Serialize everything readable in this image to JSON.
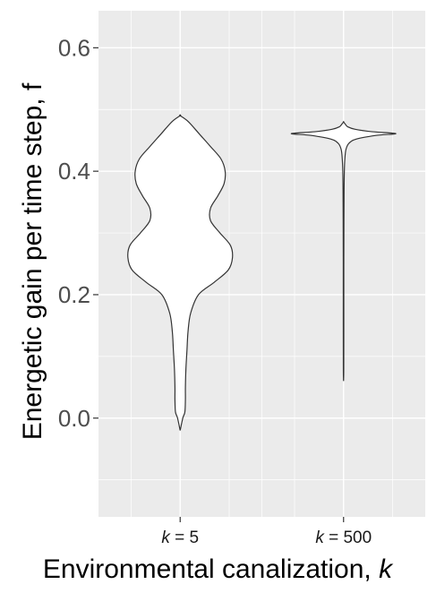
{
  "chart_data": {
    "type": "violin",
    "xlabel": "Environmental canalization, k",
    "xlabel_text": "Environmental canalization, ",
    "xlabel_var": "k",
    "ylabel": "Energetic gain per time step, f",
    "ylim": [
      -0.16,
      0.66
    ],
    "yticks": [
      0.0,
      0.2,
      0.4,
      0.6
    ],
    "ytick_labels": [
      "0.0",
      "0.2",
      "0.4",
      "0.6"
    ],
    "grid": true,
    "background": "#ebebeb",
    "gridline_color": "#ffffff",
    "violin_fill": "#ffffff",
    "violin_stroke": "#333333",
    "categories": [
      {
        "var": "k",
        "eq": " = 5",
        "label": "k = 5"
      },
      {
        "var": "k",
        "eq": " = 500",
        "label": "k = 500"
      }
    ],
    "series": [
      {
        "category": "k = 5",
        "min": -0.02,
        "max": 0.49,
        "density": [
          [
            -0.02,
            0.0
          ],
          [
            0.0,
            0.05
          ],
          [
            0.01,
            0.09
          ],
          [
            0.03,
            0.1
          ],
          [
            0.05,
            0.1
          ],
          [
            0.08,
            0.11
          ],
          [
            0.11,
            0.13
          ],
          [
            0.14,
            0.15
          ],
          [
            0.17,
            0.2
          ],
          [
            0.2,
            0.35
          ],
          [
            0.22,
            0.65
          ],
          [
            0.24,
            0.92
          ],
          [
            0.26,
            1.0
          ],
          [
            0.28,
            0.96
          ],
          [
            0.3,
            0.76
          ],
          [
            0.32,
            0.58
          ],
          [
            0.34,
            0.58
          ],
          [
            0.36,
            0.72
          ],
          [
            0.38,
            0.84
          ],
          [
            0.4,
            0.86
          ],
          [
            0.42,
            0.78
          ],
          [
            0.44,
            0.58
          ],
          [
            0.46,
            0.37
          ],
          [
            0.48,
            0.16
          ],
          [
            0.49,
            0.0
          ]
        ]
      },
      {
        "category": "k = 500",
        "min": 0.06,
        "max": 0.48,
        "density": [
          [
            0.06,
            0.0
          ],
          [
            0.08,
            0.004
          ],
          [
            0.15,
            0.005
          ],
          [
            0.25,
            0.005
          ],
          [
            0.32,
            0.007
          ],
          [
            0.37,
            0.01
          ],
          [
            0.4,
            0.015
          ],
          [
            0.42,
            0.025
          ],
          [
            0.435,
            0.045
          ],
          [
            0.445,
            0.1
          ],
          [
            0.452,
            0.24
          ],
          [
            0.458,
            0.62
          ],
          [
            0.461,
            1.0
          ],
          [
            0.464,
            0.55
          ],
          [
            0.468,
            0.22
          ],
          [
            0.472,
            0.08
          ],
          [
            0.476,
            0.035
          ],
          [
            0.48,
            0.0
          ]
        ]
      }
    ]
  }
}
